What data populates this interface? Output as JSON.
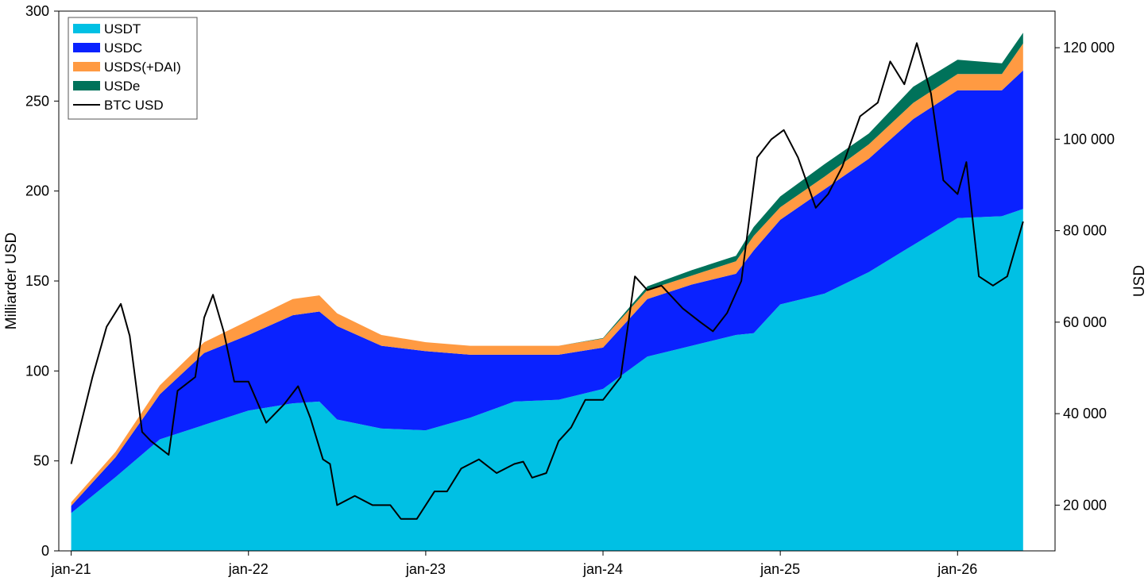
{
  "chart_data": {
    "type": "area",
    "x_tick_labels": [
      "jan-21",
      "jan-22",
      "jan-23",
      "jan-24",
      "jan-25",
      "jan-26"
    ],
    "y_left": {
      "label": "Milliarder USD",
      "ylim": [
        0,
        300
      ],
      "ticks": [
        "0",
        "50",
        "100",
        "150",
        "200",
        "250",
        "300"
      ]
    },
    "y_right": {
      "label": "USD",
      "ylim": [
        10000,
        128000
      ],
      "ticks": [
        "20 000",
        "40 000",
        "60 000",
        "80 000",
        "100 000",
        "120 000"
      ]
    },
    "x_range": [
      2020.93,
      2026.55
    ],
    "legend_position": "top-left",
    "x": [
      2021.0,
      2021.25,
      2021.5,
      2021.75,
      2022.0,
      2022.25,
      2022.4,
      2022.5,
      2022.75,
      2023.0,
      2023.25,
      2023.5,
      2023.75,
      2024.0,
      2024.25,
      2024.5,
      2024.75,
      2024.85,
      2025.0,
      2025.25,
      2025.5,
      2025.75,
      2026.0,
      2026.25,
      2026.37
    ],
    "series": [
      {
        "name": "USDT",
        "color": "#00c0e4",
        "values": [
          21,
          41,
          62,
          70,
          78,
          82,
          83,
          73,
          68,
          67,
          74,
          83,
          84,
          90,
          108,
          114,
          120,
          121,
          137,
          143,
          155,
          170,
          185,
          186,
          190
        ]
      },
      {
        "name": "USDC",
        "color": "#0a22ff",
        "values": [
          4,
          11,
          25,
          40,
          42,
          49,
          50,
          52,
          46,
          44,
          35,
          26,
          25,
          23,
          32,
          34,
          34,
          46,
          47,
          58,
          63,
          70,
          71,
          70,
          77
        ]
      },
      {
        "name": "USDS(+DAI)",
        "color": "#ff9a42",
        "values": [
          2,
          3,
          5,
          6,
          8,
          9,
          9,
          7,
          6,
          5,
          5,
          5,
          5,
          5,
          5,
          5,
          7,
          8,
          7,
          7,
          8,
          9,
          9,
          9,
          15
        ]
      },
      {
        "name": "USDe",
        "color": "#00725a",
        "values": [
          0,
          0,
          0,
          0,
          0,
          0,
          0,
          0,
          0,
          0,
          0,
          0,
          0,
          0.3,
          2,
          3,
          3,
          5,
          6,
          7,
          6,
          9,
          8,
          6,
          6
        ]
      }
    ],
    "line_series": {
      "name": "BTC USD",
      "color": "#000000",
      "axis": "right",
      "x": [
        2021.0,
        2021.05,
        2021.12,
        2021.2,
        2021.28,
        2021.33,
        2021.4,
        2021.45,
        2021.55,
        2021.6,
        2021.7,
        2021.75,
        2021.8,
        2021.86,
        2021.92,
        2022.0,
        2022.1,
        2022.2,
        2022.28,
        2022.35,
        2022.42,
        2022.46,
        2022.5,
        2022.6,
        2022.7,
        2022.8,
        2022.86,
        2022.95,
        2023.05,
        2023.12,
        2023.2,
        2023.3,
        2023.4,
        2023.5,
        2023.55,
        2023.6,
        2023.68,
        2023.75,
        2023.82,
        2023.9,
        2024.0,
        2024.1,
        2024.18,
        2024.25,
        2024.33,
        2024.45,
        2024.55,
        2024.62,
        2024.7,
        2024.78,
        2024.87,
        2024.95,
        2025.02,
        2025.1,
        2025.2,
        2025.27,
        2025.35,
        2025.45,
        2025.55,
        2025.62,
        2025.7,
        2025.77,
        2025.85,
        2025.92,
        2026.0,
        2026.05,
        2026.12,
        2026.2,
        2026.28,
        2026.37
      ],
      "values": [
        29000,
        37000,
        48000,
        59000,
        64000,
        57000,
        36000,
        34000,
        31000,
        45000,
        48000,
        61000,
        66000,
        58000,
        47000,
        47000,
        38000,
        42000,
        46000,
        39000,
        30000,
        29000,
        20000,
        22000,
        20000,
        20000,
        17000,
        17000,
        23000,
        23000,
        28000,
        30000,
        27000,
        29000,
        29500,
        26000,
        27000,
        34000,
        37000,
        43000,
        43000,
        48000,
        70000,
        67000,
        68000,
        63000,
        60000,
        58000,
        62000,
        69000,
        96000,
        100000,
        102000,
        96000,
        85000,
        88000,
        94000,
        105000,
        108000,
        117000,
        112000,
        121000,
        110000,
        91000,
        88000,
        95000,
        70000,
        68000,
        70000,
        82000
      ]
    }
  }
}
